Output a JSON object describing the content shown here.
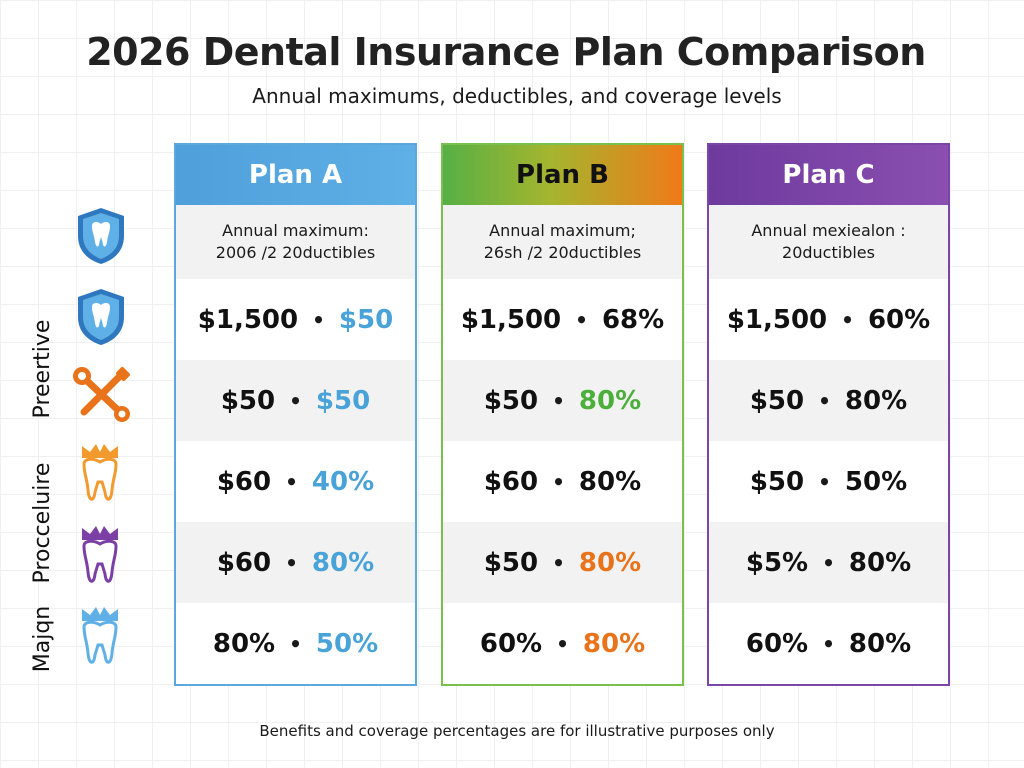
{
  "title": "2026 Dental Insurance Plan Comparison",
  "subtitle": "Annual maximums, deductibles, and coverage levels",
  "footnote": "Benefits and coverage percentages are for illustrative purposes only",
  "side_labels": [
    "Preertive",
    "Procceluire",
    "Majqn"
  ],
  "icons": [
    "tooth-shield-icon",
    "tooth-shield-icon",
    "wrench-screwdriver-icon",
    "tooth-crown-icon",
    "tooth-crown-icon",
    "tooth-crown-icon"
  ],
  "colors": {
    "plan_a": "#4f9fdb",
    "plan_b_start": "#56b046",
    "plan_b_end": "#f07a18",
    "plan_c": "#7b46a6"
  },
  "plans": [
    {
      "name": "Plan A",
      "desc_line1": "Annual maximum:",
      "desc_line2": "2006 /2 20ductibles",
      "rows": [
        {
          "left": "$1,500",
          "right": "$50"
        },
        {
          "left": "$50",
          "right": "$50"
        },
        {
          "left": "$60",
          "right": "40%"
        },
        {
          "left": "$60",
          "right": "80%"
        },
        {
          "left": "80%",
          "right": "50%"
        }
      ]
    },
    {
      "name": "Plan B",
      "desc_line1": "Annual maximum;",
      "desc_line2": "26sh /2 20ductibles",
      "rows": [
        {
          "left": "$1,500",
          "right": "68%"
        },
        {
          "left": "$50",
          "right": "80%"
        },
        {
          "left": "$60",
          "right": "80%"
        },
        {
          "left": "$50",
          "right": "80%"
        },
        {
          "left": "60%",
          "right": "80%"
        }
      ]
    },
    {
      "name": "Plan C",
      "desc_line1": "Annual mexiealon :",
      "desc_line2": "20ductibles",
      "rows": [
        {
          "left": "$1,500",
          "right": "60%"
        },
        {
          "left": "$50",
          "right": "80%"
        },
        {
          "left": "$50",
          "right": "50%"
        },
        {
          "left": "$5%",
          "right": "80%"
        },
        {
          "left": "60%",
          "right": "80%"
        }
      ]
    }
  ]
}
